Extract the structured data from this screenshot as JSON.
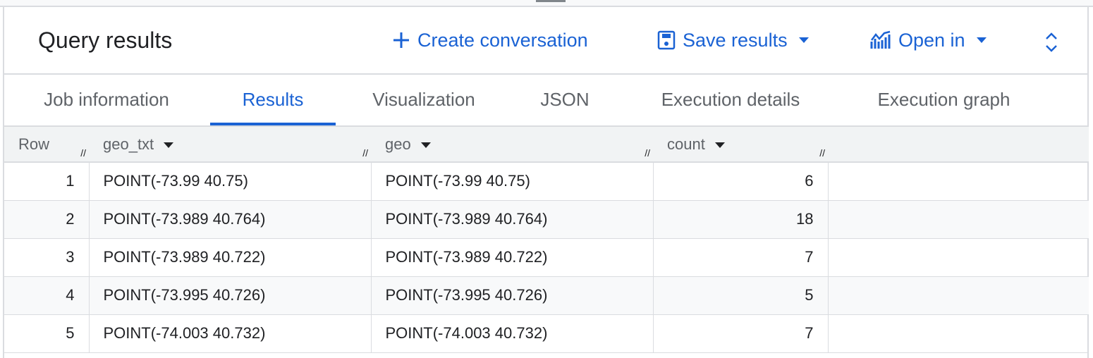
{
  "header": {
    "title": "Query results",
    "create_conversation": "Create conversation",
    "save_results": "Save results",
    "open_in": "Open in"
  },
  "tabs": [
    "Job information",
    "Results",
    "Visualization",
    "JSON",
    "Execution details",
    "Execution graph"
  ],
  "active_tab": "Results",
  "accent": "#1a62d4",
  "table": {
    "columns": [
      "Row",
      "geo_txt",
      "geo",
      "count"
    ],
    "rows": [
      [
        "1",
        "POINT(-73.99 40.75)",
        "POINT(-73.99 40.75)",
        "6"
      ],
      [
        "2",
        "POINT(-73.989 40.764)",
        "POINT(-73.989 40.764)",
        "18"
      ],
      [
        "3",
        "POINT(-73.989 40.722)",
        "POINT(-73.989 40.722)",
        "7"
      ],
      [
        "4",
        "POINT(-73.995 40.726)",
        "POINT(-73.995 40.726)",
        "5"
      ],
      [
        "5",
        "POINT(-74.003 40.732)",
        "POINT(-74.003 40.732)",
        "7"
      ]
    ]
  }
}
